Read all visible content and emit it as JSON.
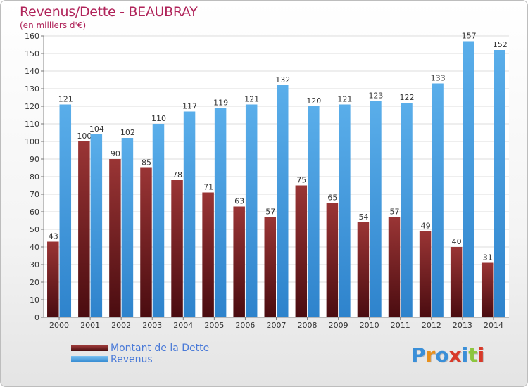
{
  "chart_data": {
    "type": "bar",
    "title": "Revenus/Dette - BEAUBRAY",
    "subtitle": "(en milliers d'€)",
    "categories": [
      "2000",
      "2001",
      "2002",
      "2003",
      "2004",
      "2005",
      "2006",
      "2007",
      "2008",
      "2009",
      "2010",
      "2011",
      "2012",
      "2013",
      "2014"
    ],
    "series": [
      {
        "name": "Montant de la Dette",
        "color": "#7a1f23",
        "values": [
          43,
          100,
          90,
          85,
          78,
          71,
          63,
          57,
          75,
          65,
          54,
          57,
          49,
          40,
          31
        ]
      },
      {
        "name": "Revenus",
        "color": "#4ea3e6",
        "values": [
          121,
          104,
          102,
          110,
          117,
          119,
          121,
          132,
          120,
          121,
          123,
          122,
          133,
          157,
          152
        ]
      }
    ],
    "ylim": [
      0,
      160
    ],
    "yticks": [
      0,
      10,
      20,
      30,
      40,
      50,
      60,
      70,
      80,
      90,
      100,
      110,
      120,
      130,
      140,
      150,
      160
    ],
    "grid": true,
    "legend_position": "bottom-left",
    "data_labels": true
  },
  "logo": {
    "text": "Proxiti",
    "letter_colors": [
      "#3a8fd8",
      "#e8901c",
      "#3a8fd8",
      "#d83a2a",
      "#3a8fd8",
      "#8cc63f",
      "#d83a2a"
    ]
  }
}
